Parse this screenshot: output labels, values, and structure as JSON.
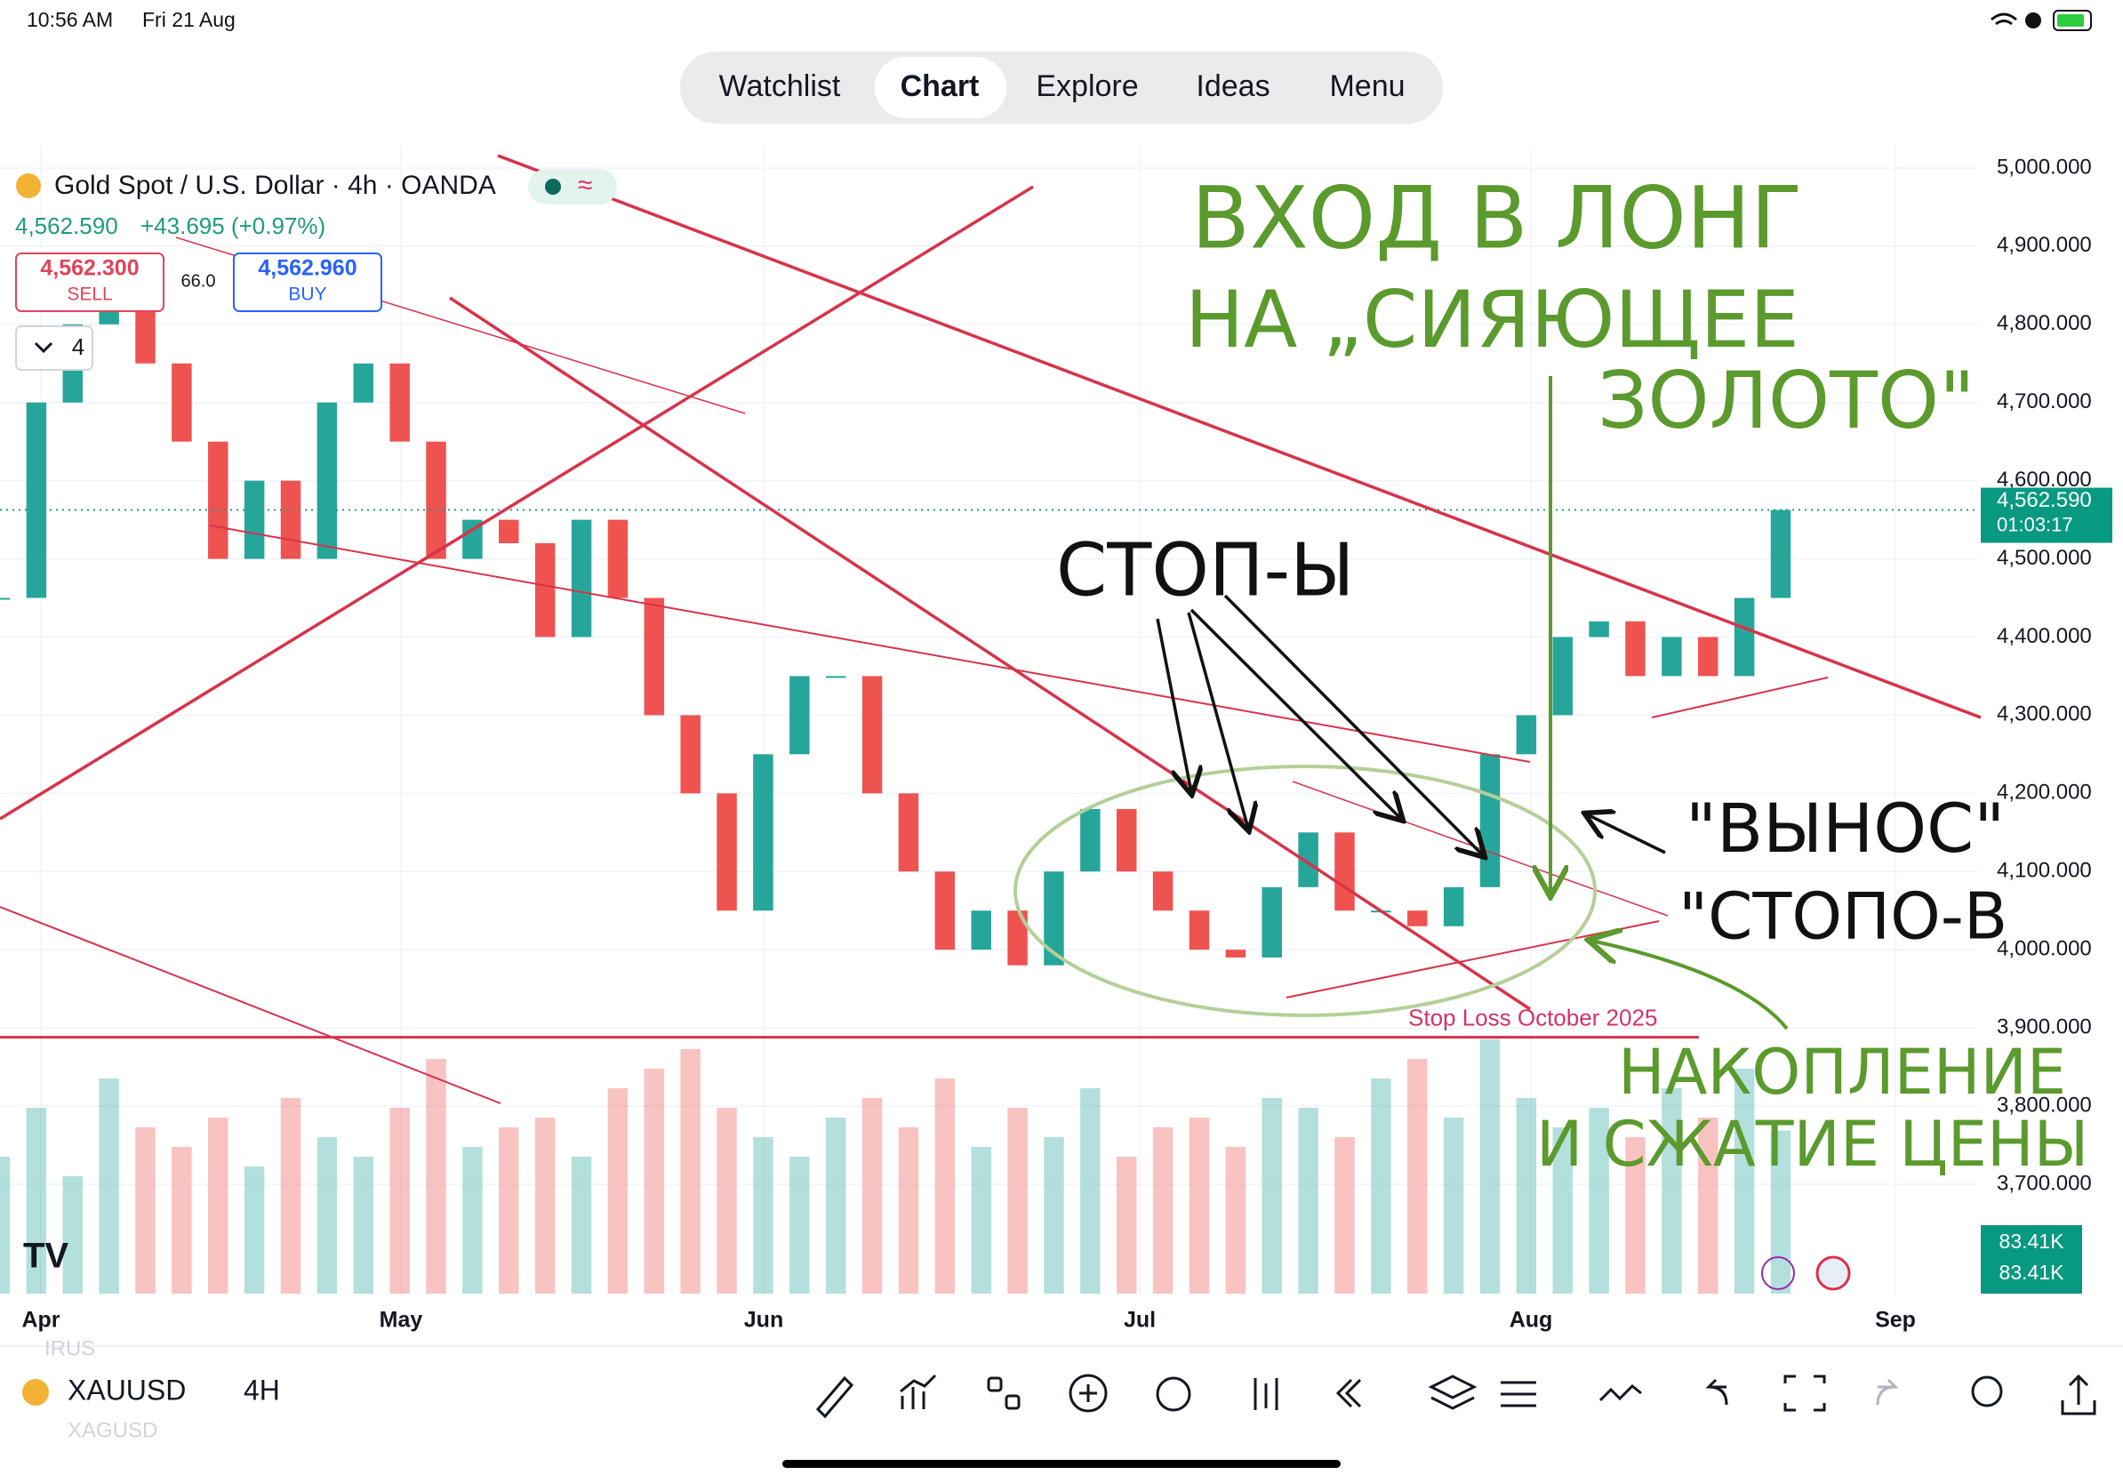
{
  "status_bar": {
    "time": "10:56 AM",
    "date": "Fri 21 Aug"
  },
  "tabs": [
    "Watchlist",
    "Chart",
    "Explore",
    "Ideas",
    "Menu"
  ],
  "header": {
    "title": "Gold Spot / U.S. Dollar · 4h · OANDA",
    "price": "4,562.590",
    "change": "+43.695 (+0.97%)",
    "sell": {
      "price": "4,562.300",
      "label": "SELL"
    },
    "buy": {
      "price": "4,562.960",
      "label": "BUY"
    },
    "spread": "66.0",
    "indicator_count": "4"
  },
  "chart_data": {
    "type": "candlestick",
    "categories": [
      "Apr",
      "May",
      "Jun",
      "Jul",
      "Aug",
      "Sep"
    ],
    "closes": [
      4450,
      4700,
      4800,
      4850,
      4750,
      4650,
      4500,
      4600,
      4500,
      4700,
      4750,
      4650,
      4500,
      4550,
      4520,
      4400,
      4550,
      4450,
      4300,
      4200,
      4050,
      4250,
      4350,
      4350,
      4200,
      4100,
      4000,
      4050,
      3980,
      4100,
      4180,
      4100,
      4050,
      4000,
      3990,
      4080,
      4150,
      4050,
      4050,
      4030,
      4080,
      4250,
      4300,
      4400,
      4420,
      4350,
      4400,
      4350,
      4450,
      4562.59
    ],
    "volume": [
      70,
      95,
      60,
      110,
      85,
      75,
      90,
      65,
      100,
      80,
      70,
      95,
      120,
      75,
      85,
      90,
      70,
      105,
      115,
      125,
      95,
      80,
      70,
      90,
      100,
      85,
      110,
      75,
      95,
      80,
      105,
      70,
      85,
      90,
      75,
      100,
      95,
      80,
      110,
      120,
      90,
      130,
      100,
      85,
      95,
      80,
      105,
      90,
      115,
      83.41
    ],
    "volume_label": "83.41K",
    "up_color": "#26a69a",
    "down_color": "#ef5350",
    "ylim": [
      3560,
      5025
    ],
    "yticks": [
      {
        "value": 3700,
        "label": "3,700.000"
      },
      {
        "value": 3800,
        "label": "3,800.000"
      },
      {
        "value": 3900,
        "label": "3,900.000"
      },
      {
        "value": 4000,
        "label": "4,000.000"
      },
      {
        "value": 4100,
        "label": "4,100.000"
      },
      {
        "value": 4200,
        "label": "4,200.000"
      },
      {
        "value": 4300,
        "label": "4,300.000"
      },
      {
        "value": 4400,
        "label": "4,400.000"
      },
      {
        "value": 4500,
        "label": "4,500.000"
      },
      {
        "value": 4600,
        "label": "4,600.000"
      },
      {
        "value": 4700,
        "label": "4,700.000"
      },
      {
        "value": 4800,
        "label": "4,800.000"
      },
      {
        "value": 4900,
        "label": "4,900.000"
      },
      {
        "value": 5000,
        "label": "5,000.000"
      }
    ],
    "grid": true,
    "last_price": {
      "value": 4562.59,
      "label": "4,562.590"
    },
    "countdown": "01:03:17",
    "stop_loss": {
      "value": 3888,
      "label": "Stop Loss October 2025"
    }
  },
  "annotations": {
    "entry_1": "ВХОД В ЛОНГ",
    "entry_2": "НА „СИЯЮЩЕЕ",
    "entry_3": "ЗОЛОТО\"",
    "stops": "СТОП-Ы",
    "sweep_1": "\"ВЫНОС\"",
    "sweep_2": "\"СТОПО-В",
    "accum_1": "НАКОПЛЕНИЕ",
    "accum_2": "И СЖАТИЕ ЦЕНЫ"
  },
  "toolbar": {
    "symbol": "XAUUSD",
    "interval": "4H",
    "faded_above": "IRUS",
    "faded_below": "XAGUSD"
  }
}
